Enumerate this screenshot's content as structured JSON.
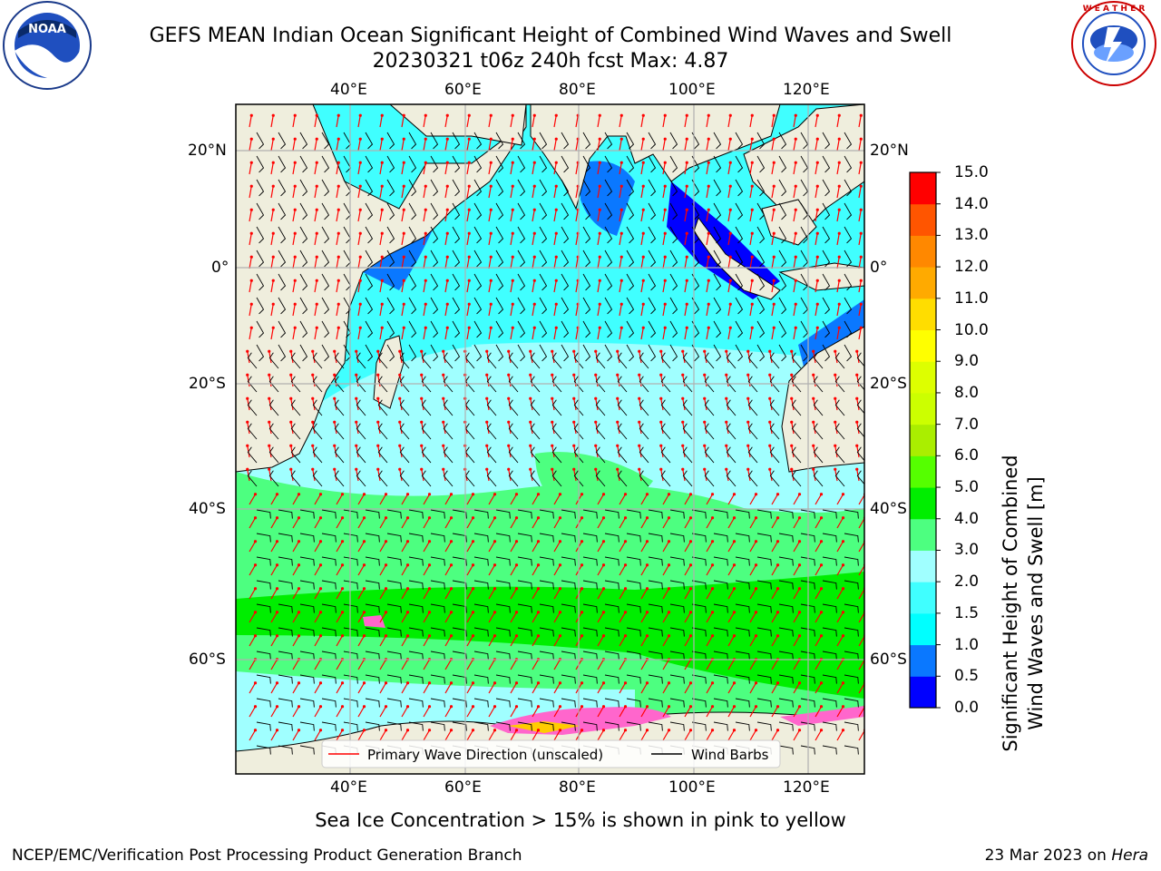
{
  "header": {
    "title_line1": "GEFS MEAN Indian Ocean Significant Height of Combined Wind Waves and Swell",
    "title_line2": "20230321 t06z 240h fcst   Max: 4.87"
  },
  "logos": {
    "noaa": {
      "center_text": "NOAA",
      "ring_text": "NATIONAL OCEANIC AND ATMOSPHERIC ADMINISTRATION · U.S. DEPARTMENT OF COMMERCE"
    },
    "nws": {
      "ring_text": "NATIONAL WEATHER SERVICE"
    }
  },
  "map": {
    "lon_labels_top": [
      "40°E",
      "60°E",
      "80°E",
      "100°E",
      "120°E"
    ],
    "lon_labels_bottom": [
      "40°E",
      "60°E",
      "80°E",
      "100°E",
      "120°E"
    ],
    "lat_labels_left": [
      "20°N",
      "0°",
      "20°S",
      "40°S",
      "60°S"
    ],
    "lat_labels_right": [
      "20°N",
      "0°",
      "20°S",
      "40°S",
      "60°S"
    ],
    "colors": {
      "land": "#efeedd",
      "grid": "#b0b0b0",
      "wave_arrow": "#ff0000",
      "wind_barb": "#000000"
    }
  },
  "legend": {
    "wave_direction": "Primary Wave Direction (unscaled)",
    "wind_barbs": "Wind Barbs"
  },
  "colorbar": {
    "label_line1": "Significant Height of Combined",
    "label_line2": "Wind Waves and Swell [m]",
    "ticks": [
      "0.0",
      "0.5",
      "1.0",
      "1.5",
      "2.0",
      "3.0",
      "4.0",
      "5.0",
      "6.0",
      "7.0",
      "8.0",
      "9.0",
      "10.0",
      "11.0",
      "12.0",
      "13.0",
      "14.0",
      "15.0"
    ],
    "colors": [
      "#0000ff",
      "#0a78ff",
      "#00ffff",
      "#40ffff",
      "#a0ffff",
      "#4dff80",
      "#00ee00",
      "#55ff00",
      "#aaee00",
      "#ccff00",
      "#ddff00",
      "#ffff00",
      "#ffdd00",
      "#ffaa00",
      "#ff8800",
      "#ff5500",
      "#ff0000"
    ]
  },
  "footer": {
    "note": "Sea Ice Concentration > 15% is shown in pink to yellow",
    "left": "NCEP/EMC/Verification Post Processing Product Generation Branch",
    "right_date": "23 Mar 2023 on ",
    "right_machine": "Hera"
  }
}
